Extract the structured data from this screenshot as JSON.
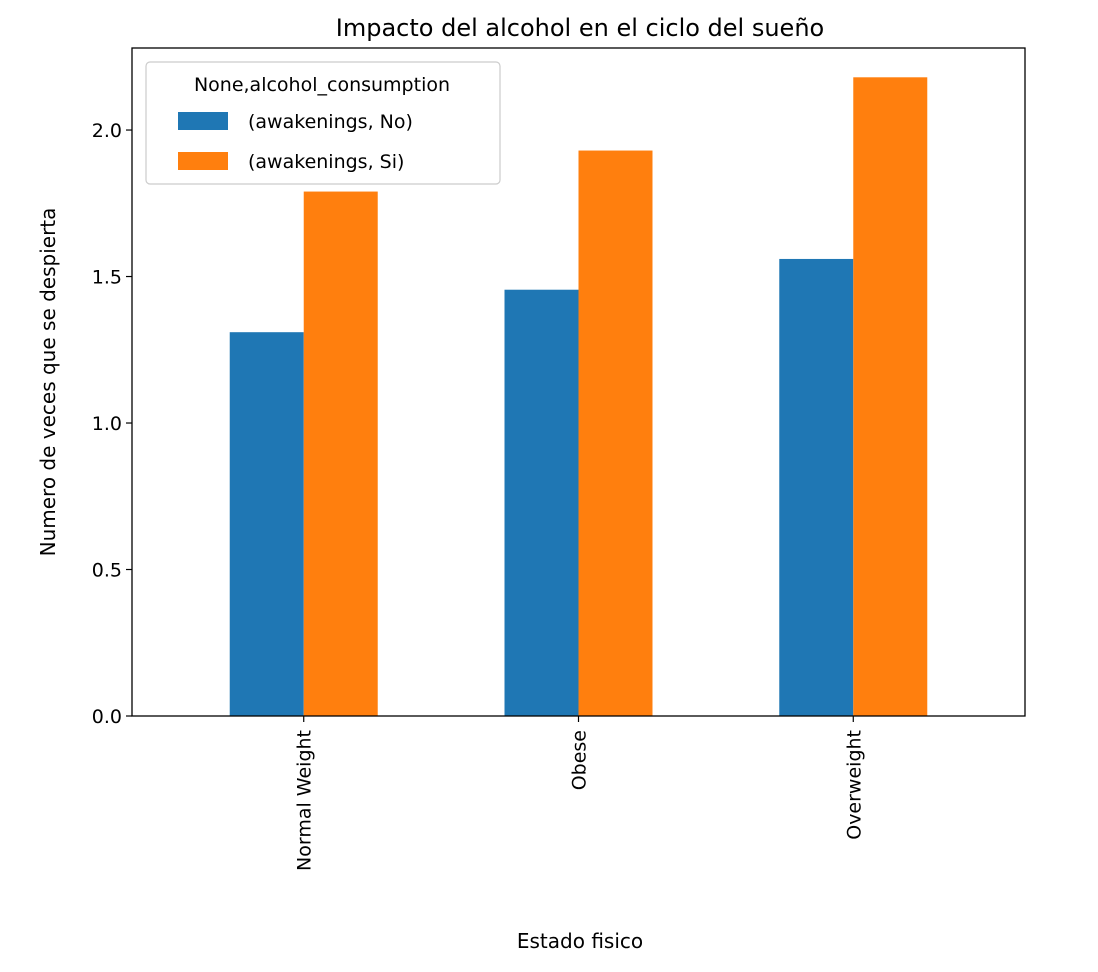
{
  "chart_data": {
    "type": "bar",
    "title": "Impacto del alcohol en el ciclo del sueño",
    "xlabel": "Estado fisico",
    "ylabel": "Numero de veces que se despierta",
    "categories": [
      "Normal Weight",
      "Obese",
      "Overweight"
    ],
    "series": [
      {
        "name": "(awakenings, No)",
        "values": [
          1.31,
          1.455,
          1.56
        ],
        "color": "#1f77b4"
      },
      {
        "name": "(awakenings, Si)",
        "values": [
          1.79,
          1.93,
          2.18
        ],
        "color": "#ff7f0e"
      }
    ],
    "legend_title": "None,alcohol_consumption",
    "legend_placement": "top-left",
    "ylim": [
      0,
      2.28
    ],
    "yticks": [
      "0.0",
      "0.5",
      "1.0",
      "1.5",
      "2.0"
    ],
    "grid": false
  }
}
